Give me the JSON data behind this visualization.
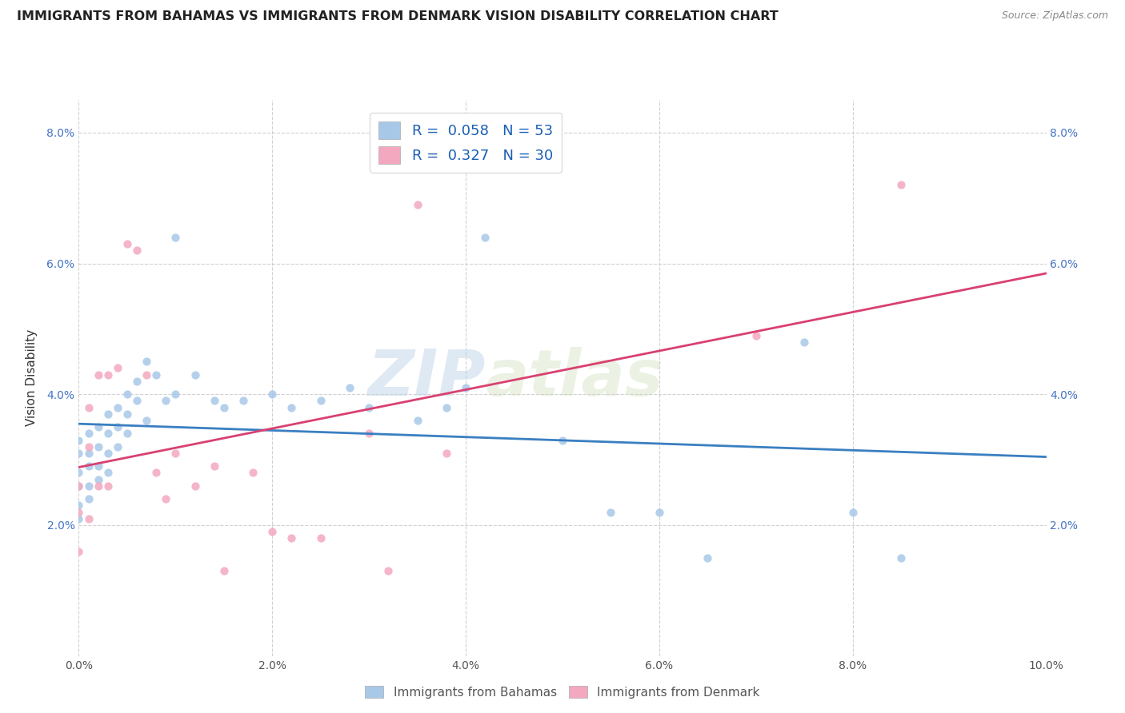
{
  "title": "IMMIGRANTS FROM BAHAMAS VS IMMIGRANTS FROM DENMARK VISION DISABILITY CORRELATION CHART",
  "source": "Source: ZipAtlas.com",
  "xlabel": "",
  "ylabel": "Vision Disability",
  "xlim": [
    0.0,
    0.1
  ],
  "ylim": [
    0.0,
    0.085
  ],
  "xticks": [
    0.0,
    0.02,
    0.04,
    0.06,
    0.08,
    0.1
  ],
  "yticks": [
    0.0,
    0.02,
    0.04,
    0.06,
    0.08
  ],
  "xticklabels": [
    "0.0%",
    "2.0%",
    "4.0%",
    "6.0%",
    "8.0%",
    "10.0%"
  ],
  "yticklabels": [
    "",
    "2.0%",
    "4.0%",
    "6.0%",
    "8.0%"
  ],
  "right_yticklabels": [
    "",
    "2.0%",
    "4.0%",
    "6.0%",
    "8.0%"
  ],
  "R_bahamas": 0.058,
  "N_bahamas": 53,
  "R_denmark": 0.327,
  "N_denmark": 30,
  "color_bahamas": "#a8c8e8",
  "color_denmark": "#f4a8c0",
  "line_color_bahamas": "#3a7fc1",
  "line_color_denmark": "#d94070",
  "watermark_zip": "ZIP",
  "watermark_atlas": "atlas",
  "legend_label_bahamas": "Immigrants from Bahamas",
  "legend_label_denmark": "Immigrants from Denmark",
  "bahamas_x": [
    0.0,
    0.0,
    0.0,
    0.0,
    0.0,
    0.0,
    0.001,
    0.001,
    0.001,
    0.001,
    0.001,
    0.002,
    0.002,
    0.002,
    0.002,
    0.003,
    0.003,
    0.003,
    0.003,
    0.004,
    0.004,
    0.004,
    0.005,
    0.005,
    0.005,
    0.006,
    0.006,
    0.007,
    0.007,
    0.008,
    0.009,
    0.01,
    0.01,
    0.012,
    0.014,
    0.015,
    0.017,
    0.02,
    0.022,
    0.025,
    0.028,
    0.03,
    0.035,
    0.038,
    0.04,
    0.042,
    0.05,
    0.055,
    0.06,
    0.065,
    0.075,
    0.08,
    0.085
  ],
  "bahamas_y": [
    0.033,
    0.031,
    0.028,
    0.026,
    0.023,
    0.021,
    0.034,
    0.031,
    0.029,
    0.026,
    0.024,
    0.035,
    0.032,
    0.029,
    0.027,
    0.037,
    0.034,
    0.031,
    0.028,
    0.038,
    0.035,
    0.032,
    0.04,
    0.037,
    0.034,
    0.042,
    0.039,
    0.045,
    0.036,
    0.043,
    0.039,
    0.064,
    0.04,
    0.043,
    0.039,
    0.038,
    0.039,
    0.04,
    0.038,
    0.039,
    0.041,
    0.038,
    0.036,
    0.038,
    0.041,
    0.064,
    0.033,
    0.022,
    0.022,
    0.015,
    0.048,
    0.022,
    0.015
  ],
  "denmark_x": [
    0.0,
    0.0,
    0.0,
    0.001,
    0.001,
    0.001,
    0.002,
    0.002,
    0.003,
    0.003,
    0.004,
    0.005,
    0.006,
    0.007,
    0.008,
    0.009,
    0.01,
    0.012,
    0.014,
    0.015,
    0.018,
    0.02,
    0.022,
    0.025,
    0.03,
    0.032,
    0.035,
    0.038,
    0.07,
    0.085
  ],
  "denmark_y": [
    0.026,
    0.022,
    0.016,
    0.038,
    0.032,
    0.021,
    0.043,
    0.026,
    0.043,
    0.026,
    0.044,
    0.063,
    0.062,
    0.043,
    0.028,
    0.024,
    0.031,
    0.026,
    0.029,
    0.013,
    0.028,
    0.019,
    0.018,
    0.018,
    0.034,
    0.013,
    0.069,
    0.031,
    0.049,
    0.072
  ]
}
